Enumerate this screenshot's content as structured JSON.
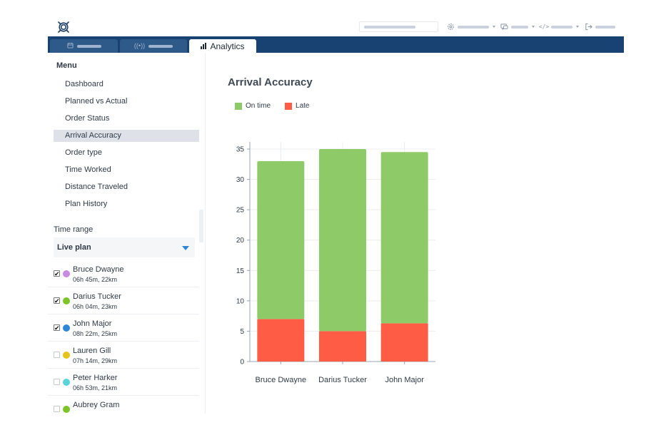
{
  "app": {
    "logo": "app-logo-icon"
  },
  "header": {
    "menus": [
      {
        "icon": "gear-icon"
      },
      {
        "icon": "chat-icon"
      },
      {
        "icon": "code-icon"
      },
      {
        "icon": "logout-icon"
      }
    ]
  },
  "tabs": [
    {
      "icon": "calendar-icon",
      "label": ""
    },
    {
      "icon": "broadcast-icon",
      "label": ""
    },
    {
      "icon": "bar-chart-icon",
      "label": "Analytics"
    }
  ],
  "sidebar": {
    "menu_title": "Menu",
    "items": [
      {
        "label": "Dashboard"
      },
      {
        "label": "Planned vs Actual"
      },
      {
        "label": "Order Status"
      },
      {
        "label": "Arrival Accuracy"
      },
      {
        "label": "Order type"
      },
      {
        "label": "Time Worked"
      },
      {
        "label": "Distance Traveled"
      },
      {
        "label": "Plan History"
      }
    ],
    "active_item": "Arrival Accuracy",
    "time_range_label": "Time range",
    "time_range_value": "Live plan",
    "drivers": [
      {
        "name": "Bruce Dwayne",
        "meta": "06h 45m, 22km",
        "checked": true,
        "color": "#c88be0"
      },
      {
        "name": "Darius Tucker",
        "meta": "06h 04m, 23km",
        "checked": true,
        "color": "#7dc42a"
      },
      {
        "name": "John Major",
        "meta": "08h 22m, 25km",
        "checked": true,
        "color": "#2f86d6"
      },
      {
        "name": "Lauren Gill",
        "meta": "07h 14m, 29km",
        "checked": false,
        "color": "#e6c21c"
      },
      {
        "name": "Peter Harker",
        "meta": "06h 53m, 21km",
        "checked": false,
        "color": "#5ad4d8"
      },
      {
        "name": "Aubrey Gram",
        "meta": "",
        "checked": false,
        "color": "#7dc42a"
      }
    ]
  },
  "main": {
    "title": "Arrival Accuracy"
  },
  "colors": {
    "on_time": "#8fca68",
    "late": "#fe5c45",
    "header_bg": "#174272"
  },
  "chart_data": {
    "type": "bar",
    "stacked": true,
    "categories": [
      "Bruce Dwayne",
      "Darius Tucker",
      "John Major"
    ],
    "series": [
      {
        "name": "Late",
        "values": [
          7,
          5,
          6.3
        ]
      },
      {
        "name": "On time",
        "values": [
          26,
          30,
          28.2
        ]
      }
    ],
    "legend": "top-left",
    "ylim": [
      0,
      35
    ],
    "yticks": [
      "0",
      "5",
      "10",
      "15",
      "20",
      "25",
      "30",
      "35"
    ],
    "grid": true
  }
}
